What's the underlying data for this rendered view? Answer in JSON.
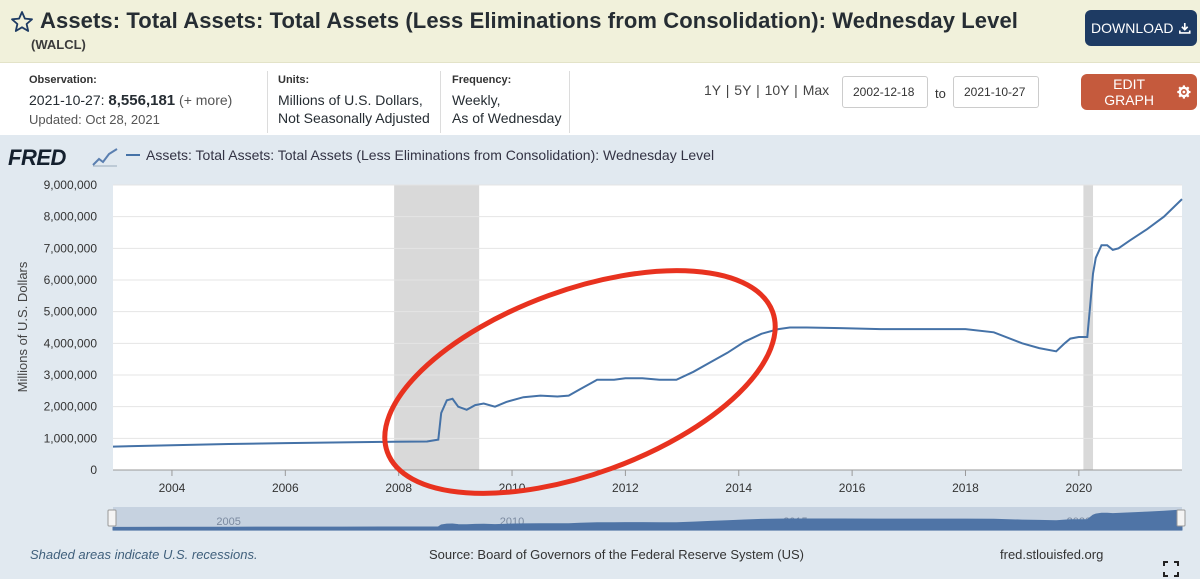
{
  "header": {
    "title": "Assets: Total Assets: Total Assets (Less Eliminations from Consolidation): Wednesday Level",
    "series_id": "(WALCL)",
    "download_label": "DOWNLOAD",
    "star_icon": "star-outline-icon",
    "download_icon": "download-icon"
  },
  "meta": {
    "observation_label": "Observation:",
    "observation_date": "2021-10-27:",
    "observation_value": "8,556,181",
    "observation_more": "(+ more)",
    "updated": "Updated: Oct 28, 2021",
    "units_label": "Units:",
    "units_line1": "Millions of U.S. Dollars,",
    "units_line2": "Not Seasonally Adjusted",
    "frequency_label": "Frequency:",
    "frequency_line1": "Weekly,",
    "frequency_line2": "As of Wednesday"
  },
  "controls": {
    "ranges": [
      "1Y",
      "5Y",
      "10Y",
      "Max"
    ],
    "range_separator": "|",
    "start_date": "2002-12-18",
    "to_label": "to",
    "end_date": "2021-10-27",
    "edit_label": "EDIT GRAPH",
    "edit_icon": "gear-icon"
  },
  "logo": "FRED",
  "legend_label": "Assets: Total Assets: Total Assets (Less Eliminations from Consolidation): Wednesday Level",
  "colors": {
    "series": "#4572a7",
    "recession": "#d9d9d9",
    "annotation": "#e8321f",
    "download": "#1e3b63",
    "edit": "#c55a3d"
  },
  "footer": {
    "recession_note": "Shaded areas indicate U.S. recessions.",
    "source": "Source: Board of Governors of the Federal Reserve System (US)",
    "site": "fred.stlouisfed.org",
    "fullscreen_icon": "fullscreen-icon"
  },
  "chart_data": {
    "type": "line",
    "title": "Assets: Total Assets: Total Assets (Less Eliminations from Consolidation): Wednesday Level",
    "xlabel": "",
    "ylabel": "Millions of U.S. Dollars",
    "xlim": [
      2002.96,
      2021.82
    ],
    "ylim": [
      0,
      9000000
    ],
    "y_ticks": [
      0,
      1000000,
      2000000,
      3000000,
      4000000,
      5000000,
      6000000,
      7000000,
      8000000,
      9000000
    ],
    "y_tick_labels": [
      "0",
      "1,000,000",
      "2,000,000",
      "3,000,000",
      "4,000,000",
      "5,000,000",
      "6,000,000",
      "7,000,000",
      "8,000,000",
      "9,000,000"
    ],
    "x_ticks": [
      2004,
      2006,
      2008,
      2010,
      2012,
      2014,
      2016,
      2018,
      2020
    ],
    "x_tick_labels": [
      "2004",
      "2006",
      "2008",
      "2010",
      "2012",
      "2014",
      "2016",
      "2018",
      "2020"
    ],
    "recessions": [
      [
        2007.92,
        2009.42
      ],
      [
        2020.08,
        2020.25
      ]
    ],
    "navigator_labels": [
      "2005",
      "2010",
      "2015",
      "2020"
    ],
    "navigator_ticks": [
      2005,
      2010,
      2015,
      2020
    ],
    "annotation": {
      "type": "ellipse",
      "description": "red hand-drawn circle around the 2008–2014 expansion"
    },
    "series": [
      {
        "name": "WALCL",
        "x": [
          2002.96,
          2004.0,
          2005.0,
          2006.0,
          2007.0,
          2007.9,
          2008.5,
          2008.7,
          2008.75,
          2008.85,
          2008.95,
          2009.05,
          2009.2,
          2009.35,
          2009.5,
          2009.7,
          2009.9,
          2010.2,
          2010.5,
          2010.8,
          2011.0,
          2011.2,
          2011.5,
          2011.8,
          2012.0,
          2012.3,
          2012.6,
          2012.9,
          2013.2,
          2013.5,
          2013.8,
          2014.1,
          2014.4,
          2014.7,
          2014.9,
          2015.2,
          2015.8,
          2016.5,
          2017.0,
          2017.5,
          2018.0,
          2018.5,
          2019.0,
          2019.3,
          2019.6,
          2019.75,
          2019.85,
          2020.0,
          2020.15,
          2020.2,
          2020.25,
          2020.3,
          2020.4,
          2020.5,
          2020.6,
          2020.7,
          2020.9,
          2021.2,
          2021.5,
          2021.82
        ],
        "y": [
          740000,
          780000,
          820000,
          850000,
          870000,
          890000,
          900000,
          960000,
          1800000,
          2200000,
          2250000,
          2000000,
          1900000,
          2050000,
          2100000,
          2000000,
          2150000,
          2300000,
          2350000,
          2320000,
          2350000,
          2550000,
          2850000,
          2850000,
          2900000,
          2900000,
          2850000,
          2850000,
          3100000,
          3400000,
          3700000,
          4050000,
          4300000,
          4450000,
          4500000,
          4500000,
          4480000,
          4450000,
          4450000,
          4450000,
          4450000,
          4350000,
          4000000,
          3850000,
          3750000,
          4000000,
          4150000,
          4200000,
          4200000,
          5200000,
          6200000,
          6700000,
          7100000,
          7100000,
          6950000,
          7000000,
          7250000,
          7600000,
          8000000,
          8556181
        ]
      }
    ]
  }
}
